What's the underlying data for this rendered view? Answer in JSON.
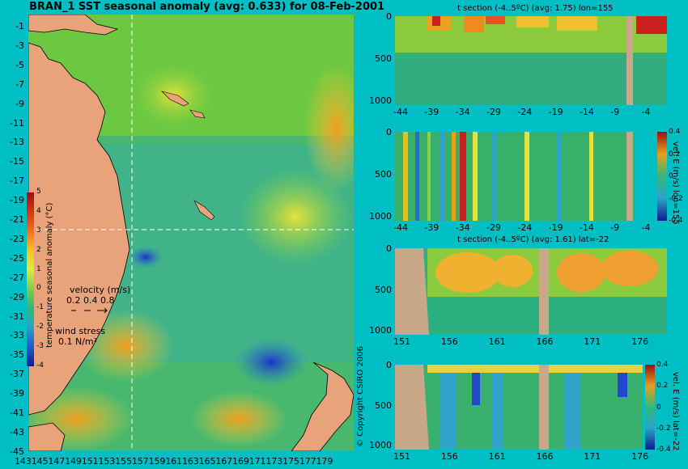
{
  "title": "BRAN_1 SST seasonal anomaly (avg: 0.633) for 08-Feb-2001",
  "map": {
    "lat_ticks": [
      "-1",
      "-3",
      "-5",
      "-7",
      "-9",
      "-11",
      "-13",
      "-15",
      "-17",
      "-19",
      "-21",
      "-23",
      "-25",
      "-27",
      "-29",
      "-31",
      "-33",
      "-35",
      "-37",
      "-39",
      "-41",
      "-43",
      "-45"
    ],
    "lon_labels": "143145147149151153155157159161163165167169171173175177179",
    "colorbar": {
      "label": "temperature seasonal anomaly (°C)",
      "ticks": [
        "5",
        "4",
        "3",
        "2",
        "1",
        "0",
        "-1",
        "-2",
        "-3",
        "-4"
      ]
    },
    "velocity_legend": {
      "title": "velocity (m/s)",
      "values": "0.2 0.4 0.8"
    },
    "wind_legend": {
      "title": "wind stress",
      "value": "0.1 N/m²"
    },
    "copyright": "© Copyright CSIRO 2006"
  },
  "sections": [
    {
      "title": "t section (-4..5ºC) (avg: 1.75) lon=155",
      "y_ticks": [
        "0",
        "500",
        "1000"
      ],
      "x_ticks": [
        "-44",
        "-39",
        "-34",
        "-29",
        "-24",
        "-19",
        "-14",
        "-9",
        "-4"
      ],
      "colors": {
        "warm": "#c9201d",
        "cool": "#2fb07a"
      }
    },
    {
      "title": "",
      "y_ticks": [
        "0",
        "500",
        "1000"
      ],
      "x_ticks": [
        "-44",
        "-39",
        "-34",
        "-29",
        "-24",
        "-19",
        "-14",
        "-9",
        "-4"
      ],
      "colorbar_label": "vel. E (m/s) lon=155",
      "colorbar_ticks": [
        "0.4",
        "0.2",
        "0",
        "-0.2",
        "-0.4"
      ]
    },
    {
      "title": "t section (-4..5ºC) (avg: 1.61) lat=-22",
      "y_ticks": [
        "0",
        "500",
        "1000"
      ],
      "x_ticks": [
        "151",
        "156",
        "161",
        "166",
        "171",
        "176"
      ]
    },
    {
      "title": "",
      "y_ticks": [
        "0",
        "500",
        "1000"
      ],
      "x_ticks": [
        "151",
        "156",
        "161",
        "166",
        "171",
        "176"
      ],
      "colorbar_label": "vel. E (m/s) lat=-22",
      "colorbar_ticks": [
        "0.4",
        "0.2",
        "0",
        "-0.2",
        "-0.4"
      ]
    }
  ],
  "chart_data": [
    {
      "type": "heatmap",
      "title": "BRAN_1 SST seasonal anomaly (avg: 0.633) for 08-Feb-2001",
      "x": {
        "label": "",
        "range": [
          143,
          180
        ],
        "ticks": [
          143,
          145,
          147,
          149,
          151,
          153,
          155,
          157,
          159,
          161,
          163,
          165,
          167,
          169,
          171,
          173,
          175,
          177,
          179
        ]
      },
      "y": {
        "label": "",
        "range": [
          -45,
          0
        ],
        "ticks": [
          -1,
          -3,
          -5,
          -7,
          -9,
          -11,
          -13,
          -15,
          -17,
          -19,
          -21,
          -23,
          -25,
          -27,
          -29,
          -31,
          -33,
          -35,
          -37,
          -39,
          -41,
          -43,
          -45
        ]
      },
      "value_range": [
        -4,
        5
      ],
      "value_label": "temperature seasonal anomaly (°C)",
      "avg": 0.633
    },
    {
      "type": "heatmap",
      "title": "t section (-4..5ºC) (avg: 1.75) lon=155",
      "x_ticks": [
        -44,
        -39,
        -34,
        -29,
        -24,
        -19,
        -14,
        -9,
        -4
      ],
      "y_ticks": [
        0,
        500,
        1000
      ],
      "value_range": [
        -4,
        5
      ],
      "avg": 1.75
    },
    {
      "type": "heatmap",
      "title": "",
      "x_ticks": [
        -44,
        -39,
        -34,
        -29,
        -24,
        -19,
        -14,
        -9,
        -4
      ],
      "y_ticks": [
        0,
        500,
        1000
      ],
      "value_range": [
        -0.4,
        0.4
      ],
      "value_label": "vel. E (m/s) lon=155"
    },
    {
      "type": "heatmap",
      "title": "t section (-4..5ºC) (avg: 1.61) lat=-22",
      "x_ticks": [
        151,
        156,
        161,
        166,
        171,
        176
      ],
      "y_ticks": [
        0,
        500,
        1000
      ],
      "value_range": [
        -4,
        5
      ],
      "avg": 1.61
    },
    {
      "type": "heatmap",
      "title": "",
      "x_ticks": [
        151,
        156,
        161,
        166,
        171,
        176
      ],
      "y_ticks": [
        0,
        500,
        1000
      ],
      "value_range": [
        -0.4,
        0.4
      ],
      "value_label": "vel. E (m/s) lat=-22"
    }
  ]
}
